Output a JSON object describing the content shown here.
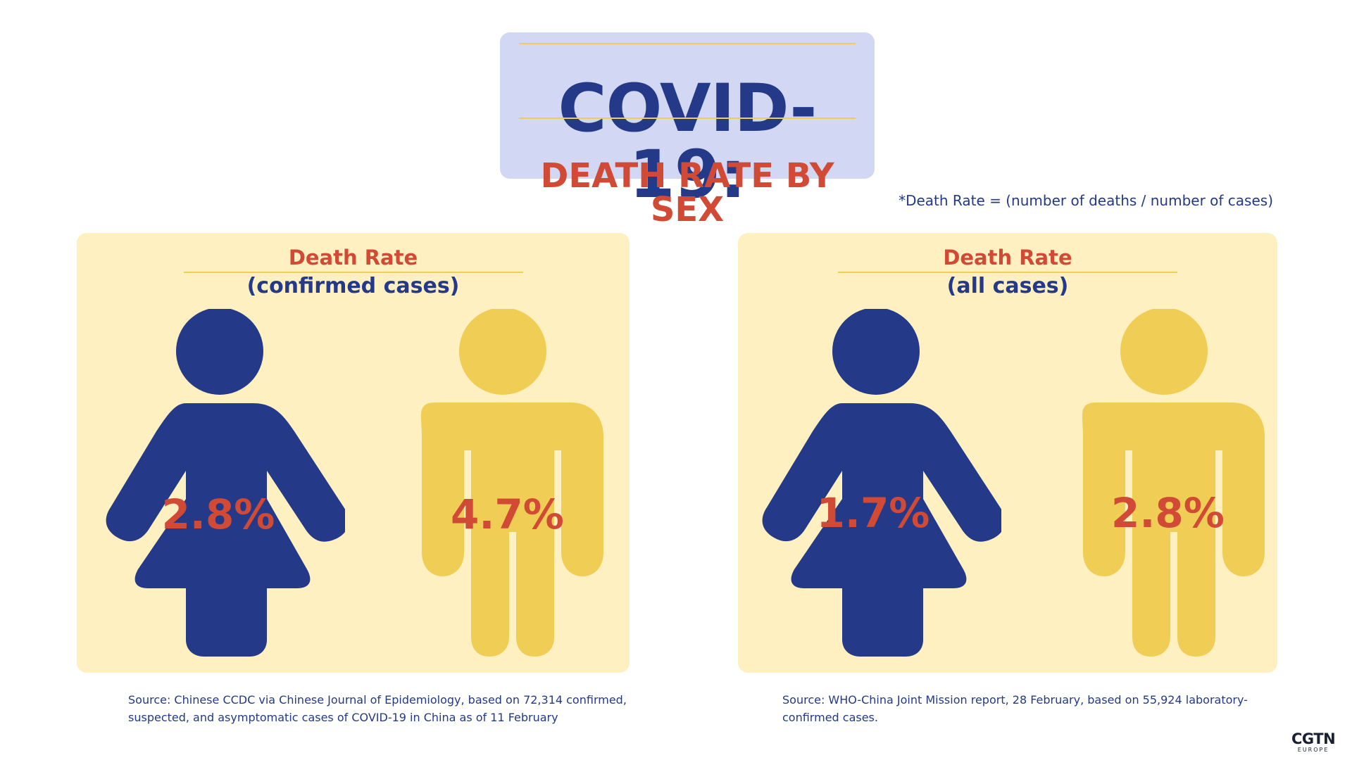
{
  "header": {
    "title": "COVID-19:",
    "subtitle": "DEATH RATE BY SEX"
  },
  "footnote": "*Death Rate = (number of deaths / number of cases)",
  "panels": [
    {
      "title": "Death Rate",
      "subtitle": "(confirmed cases)",
      "female_rate": "2.8%",
      "male_rate": "4.7%",
      "source_line1": "Source: Chinese CCDC via Chinese Journal of Epidemiology, based on 72,314 confirmed,",
      "source_line2": "suspected, and asymptomatic cases of COVID-19 in China as of 11 February"
    },
    {
      "title": "Death Rate",
      "subtitle": "(all cases)",
      "female_rate": "1.7%",
      "male_rate": "2.8%",
      "source_line1": "Source: WHO-China Joint Mission report, 28 February, based on 55,924 laboratory-",
      "source_line2": "confirmed cases."
    }
  ],
  "logo": {
    "name": "CGTN",
    "region": "EUROPE"
  },
  "colors": {
    "female": "#243988",
    "male": "#f0cd55",
    "accent": "#d04a35",
    "panel_bg": "#fef0c1",
    "title_bg": "#d2d7f4"
  }
}
